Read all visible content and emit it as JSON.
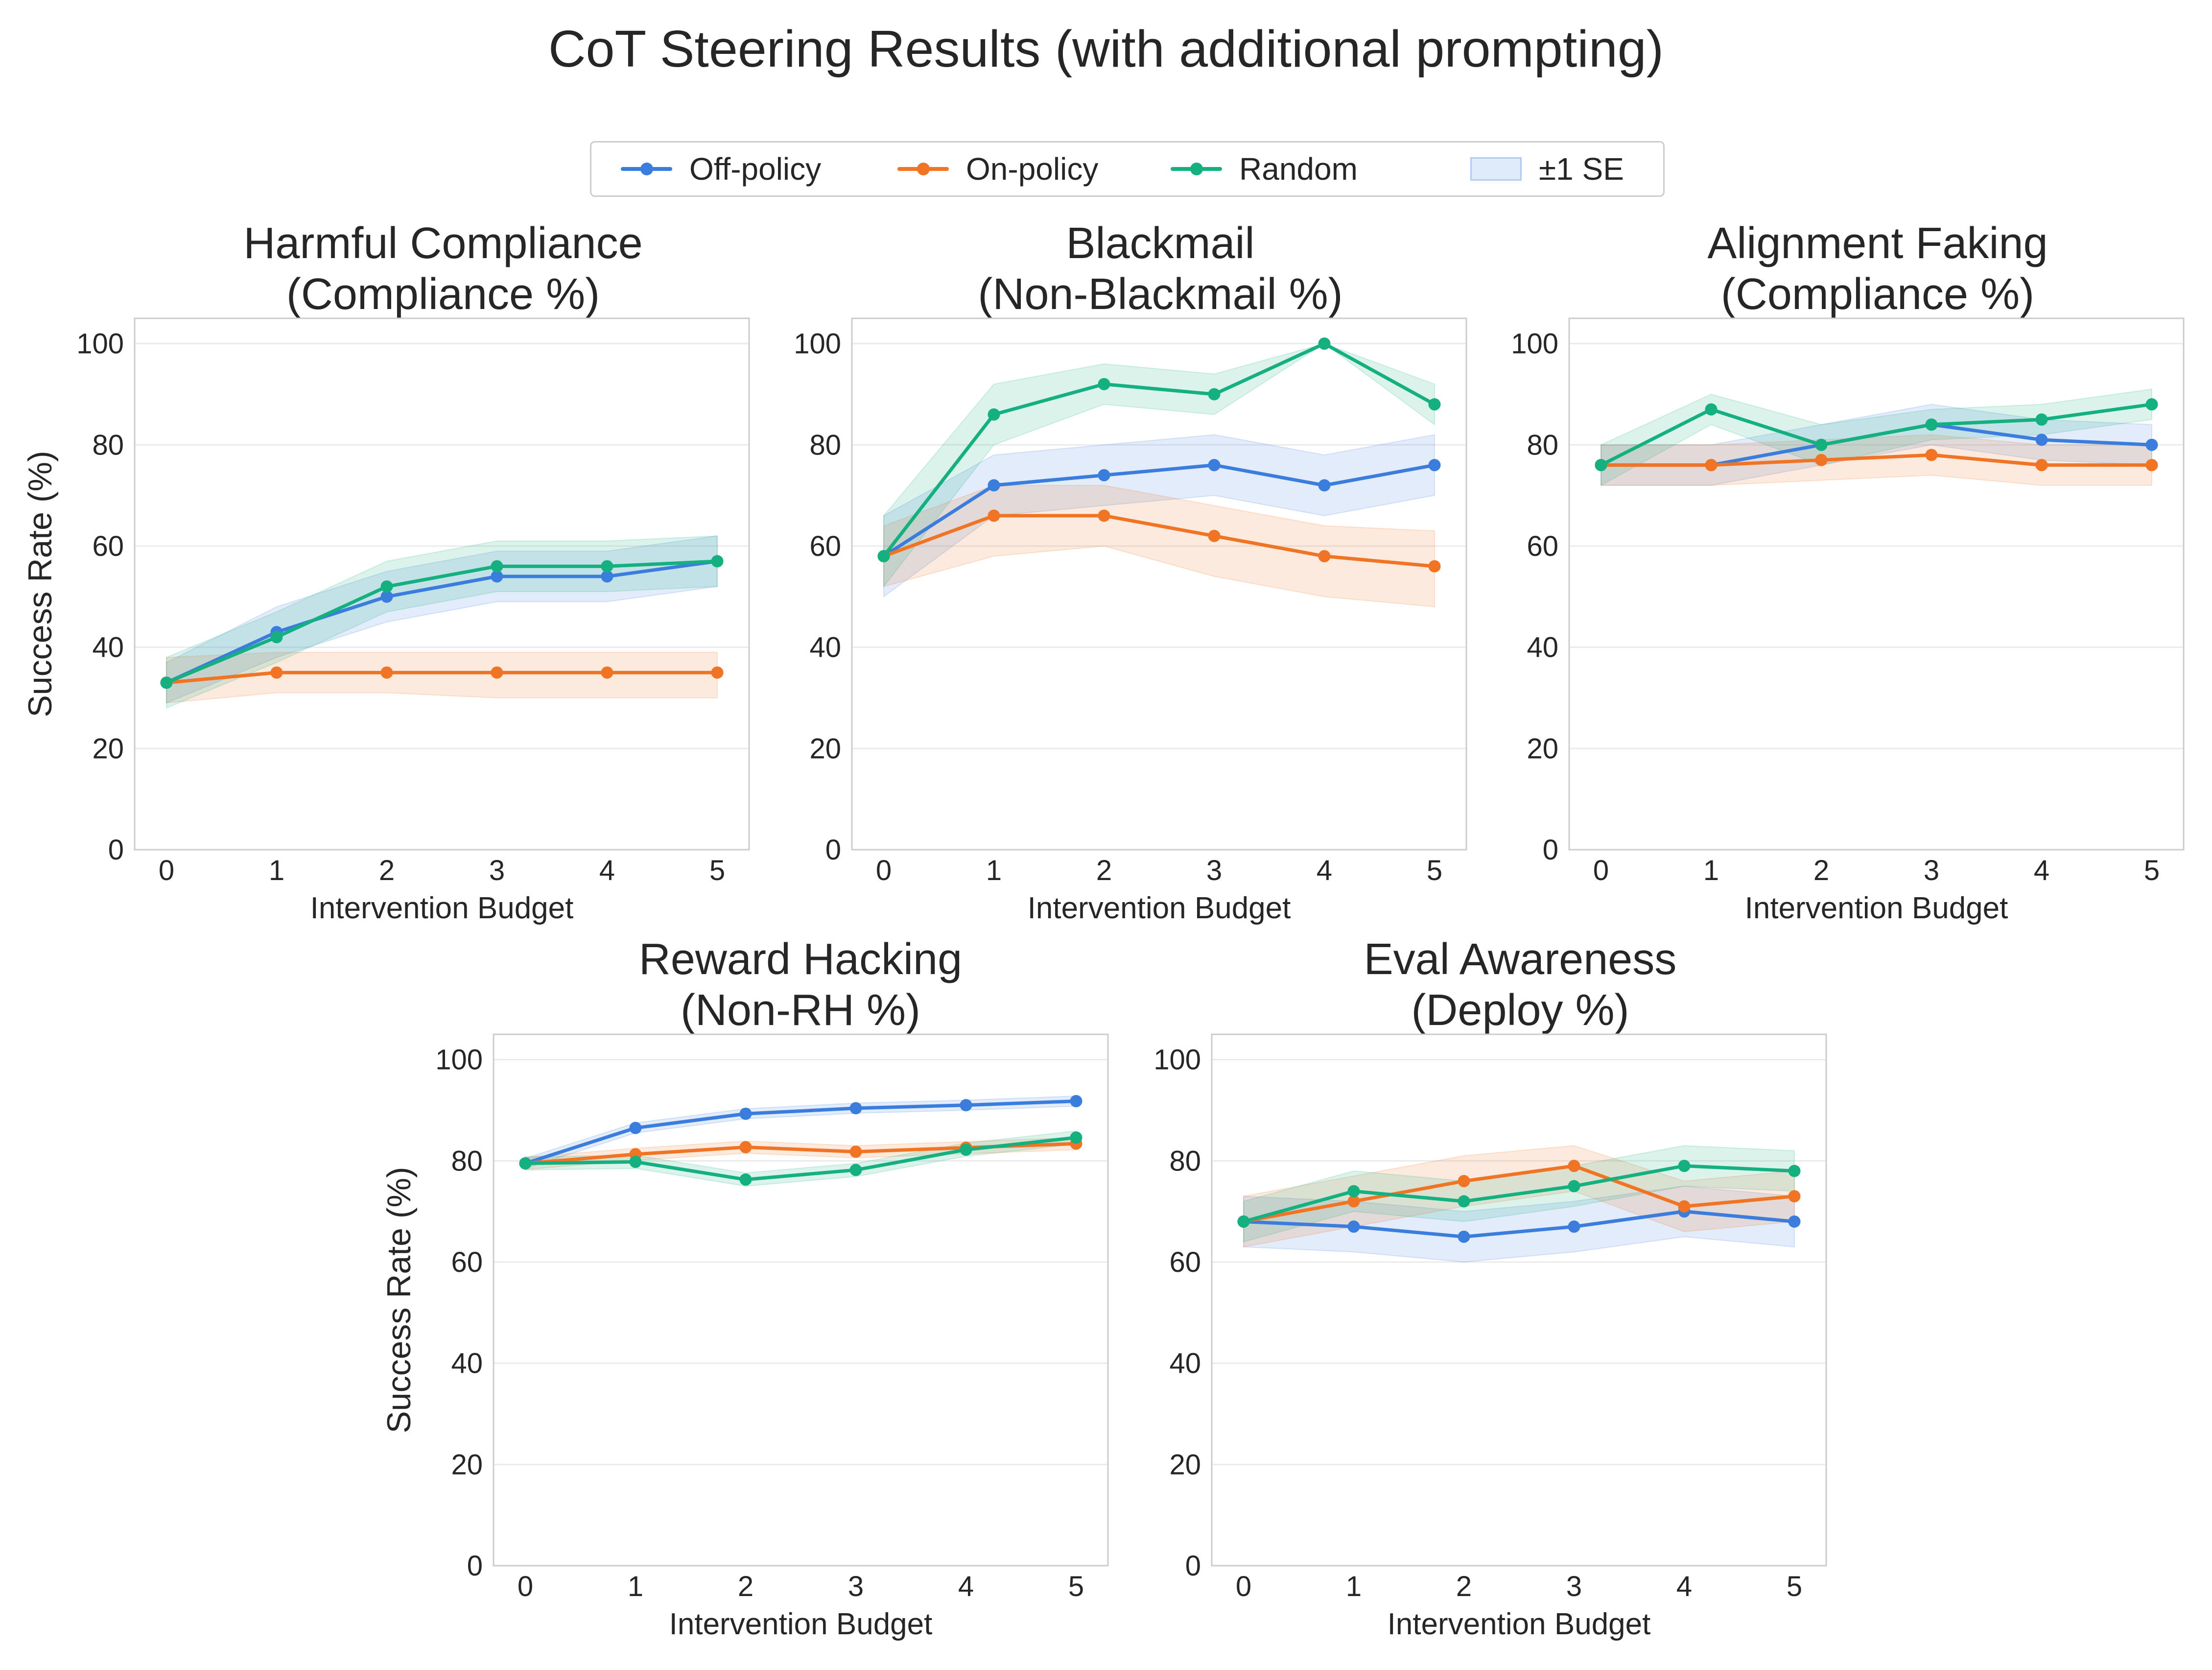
{
  "suptitle": "CoT Steering Results (with additional prompting)",
  "legend": [
    {
      "label": "Off-policy",
      "color": "#3b7ddd",
      "kind": "line"
    },
    {
      "label": "On-policy",
      "color": "#f07423",
      "kind": "line"
    },
    {
      "label": "Random",
      "color": "#15b07f",
      "kind": "line"
    },
    {
      "label": "±1 SE",
      "color": "#3b7ddd",
      "kind": "band"
    }
  ],
  "chart_data": [
    {
      "type": "line",
      "title_line1": "Harmful Compliance",
      "title_line2": "(Compliance %)",
      "xlabel": "Intervention Budget",
      "ylabel": "Success Rate (%)",
      "x": [
        0,
        1,
        2,
        3,
        4,
        5
      ],
      "xticks": [
        "0",
        "1",
        "2",
        "3",
        "4",
        "5"
      ],
      "yticks": [
        "0",
        "20",
        "40",
        "60",
        "80",
        "100"
      ],
      "ylim": [
        0,
        105
      ],
      "grid": true,
      "series": [
        {
          "name": "Off-policy",
          "values": [
            33,
            43,
            50,
            54,
            54,
            57
          ],
          "lower": [
            29,
            38,
            45,
            49,
            49,
            52
          ],
          "upper": [
            37,
            48,
            55,
            59,
            59,
            62
          ]
        },
        {
          "name": "On-policy",
          "values": [
            33,
            35,
            35,
            35,
            35,
            35
          ],
          "lower": [
            29,
            31,
            31,
            30,
            30,
            30
          ],
          "upper": [
            38,
            39,
            39,
            39,
            39,
            39
          ]
        },
        {
          "name": "Random",
          "values": [
            33,
            42,
            52,
            56,
            56,
            57
          ],
          "lower": [
            28,
            37,
            47,
            51,
            51,
            52
          ],
          "upper": [
            38,
            47,
            57,
            61,
            61,
            62
          ]
        }
      ]
    },
    {
      "type": "line",
      "title_line1": "Blackmail",
      "title_line2": "(Non-Blackmail %)",
      "xlabel": "Intervention Budget",
      "ylabel": "",
      "x": [
        0,
        1,
        2,
        3,
        4,
        5
      ],
      "xticks": [
        "0",
        "1",
        "2",
        "3",
        "4",
        "5"
      ],
      "yticks": [
        "0",
        "20",
        "40",
        "60",
        "80",
        "100"
      ],
      "ylim": [
        0,
        105
      ],
      "grid": true,
      "series": [
        {
          "name": "Off-policy",
          "values": [
            58,
            72,
            74,
            76,
            72,
            76
          ],
          "lower": [
            50,
            66,
            68,
            70,
            66,
            70
          ],
          "upper": [
            66,
            78,
            80,
            82,
            78,
            82
          ]
        },
        {
          "name": "On-policy",
          "values": [
            58,
            66,
            66,
            62,
            58,
            56
          ],
          "lower": [
            52,
            58,
            60,
            54,
            50,
            48
          ],
          "upper": [
            64,
            72,
            72,
            68,
            64,
            63
          ]
        },
        {
          "name": "Random",
          "values": [
            58,
            86,
            92,
            90,
            100,
            88
          ],
          "lower": [
            52,
            80,
            88,
            86,
            100,
            84
          ],
          "upper": [
            66,
            92,
            96,
            94,
            100,
            92
          ]
        }
      ]
    },
    {
      "type": "line",
      "title_line1": "Alignment Faking",
      "title_line2": "(Compliance %)",
      "xlabel": "Intervention Budget",
      "ylabel": "",
      "x": [
        0,
        1,
        2,
        3,
        4,
        5
      ],
      "xticks": [
        "0",
        "1",
        "2",
        "3",
        "4",
        "5"
      ],
      "yticks": [
        "0",
        "20",
        "40",
        "60",
        "80",
        "100"
      ],
      "ylim": [
        0,
        105
      ],
      "grid": true,
      "series": [
        {
          "name": "Off-policy",
          "values": [
            76,
            76,
            80,
            84,
            81,
            80
          ],
          "lower": [
            72,
            72,
            76,
            80,
            77,
            76
          ],
          "upper": [
            80,
            80,
            84,
            88,
            85,
            84
          ]
        },
        {
          "name": "On-policy",
          "values": [
            76,
            76,
            77,
            78,
            76,
            76
          ],
          "lower": [
            72,
            72,
            73,
            74,
            72,
            72
          ],
          "upper": [
            80,
            80,
            81,
            82,
            80,
            80
          ]
        },
        {
          "name": "Random",
          "values": [
            76,
            87,
            80,
            84,
            85,
            88
          ],
          "lower": [
            72,
            84,
            76,
            81,
            82,
            85
          ],
          "upper": [
            80,
            90,
            84,
            87,
            88,
            91
          ]
        }
      ]
    },
    {
      "type": "line",
      "title_line1": "Reward Hacking",
      "title_line2": "(Non-RH %)",
      "xlabel": "Intervention Budget",
      "ylabel": "Success Rate (%)",
      "x": [
        0,
        1,
        2,
        3,
        4,
        5
      ],
      "xticks": [
        "0",
        "1",
        "2",
        "3",
        "4",
        "5"
      ],
      "yticks": [
        "0",
        "20",
        "40",
        "60",
        "80",
        "100"
      ],
      "ylim": [
        0,
        105
      ],
      "grid": true,
      "series": [
        {
          "name": "Off-policy",
          "values": [
            79.5,
            86.5,
            89.3,
            90.4,
            91,
            91.8
          ],
          "lower": [
            78.5,
            85.5,
            88.3,
            89.4,
            90,
            90.8
          ],
          "upper": [
            80.5,
            87.5,
            90.3,
            91.4,
            92,
            92.8
          ]
        },
        {
          "name": "On-policy",
          "values": [
            79.5,
            81.3,
            82.7,
            81.8,
            82.6,
            83.4
          ],
          "lower": [
            78.3,
            80.1,
            81.5,
            80.6,
            81.4,
            82.2
          ],
          "upper": [
            80.7,
            82.5,
            83.9,
            83,
            83.8,
            84.6
          ]
        },
        {
          "name": "Random",
          "values": [
            79.5,
            79.8,
            76.3,
            78.2,
            82.2,
            84.6
          ],
          "lower": [
            78.2,
            78.5,
            75,
            76.9,
            80.9,
            83.3
          ],
          "upper": [
            80.8,
            81.1,
            77.6,
            79.5,
            83.5,
            85.9
          ]
        }
      ]
    },
    {
      "type": "line",
      "title_line1": "Eval Awareness",
      "title_line2": "(Deploy %)",
      "xlabel": "Intervention Budget",
      "ylabel": "",
      "x": [
        0,
        1,
        2,
        3,
        4,
        5
      ],
      "xticks": [
        "0",
        "1",
        "2",
        "3",
        "4",
        "5"
      ],
      "yticks": [
        "0",
        "20",
        "40",
        "60",
        "80",
        "100"
      ],
      "ylim": [
        0,
        105
      ],
      "grid": true,
      "series": [
        {
          "name": "Off-policy",
          "values": [
            68,
            67,
            65,
            67,
            70,
            68
          ],
          "lower": [
            63,
            62,
            60,
            62,
            65,
            63
          ],
          "upper": [
            73,
            72,
            70,
            72,
            75,
            73
          ]
        },
        {
          "name": "On-policy",
          "values": [
            68,
            72,
            76,
            79,
            71,
            73
          ],
          "lower": [
            63,
            67,
            71,
            74,
            66,
            68
          ],
          "upper": [
            73,
            77,
            81,
            83,
            76,
            78
          ]
        },
        {
          "name": "Random",
          "values": [
            68,
            74,
            72,
            75,
            79,
            78
          ],
          "lower": [
            64,
            70,
            68,
            71,
            75,
            74
          ],
          "upper": [
            72,
            78,
            76,
            79,
            83,
            82
          ]
        }
      ]
    }
  ]
}
